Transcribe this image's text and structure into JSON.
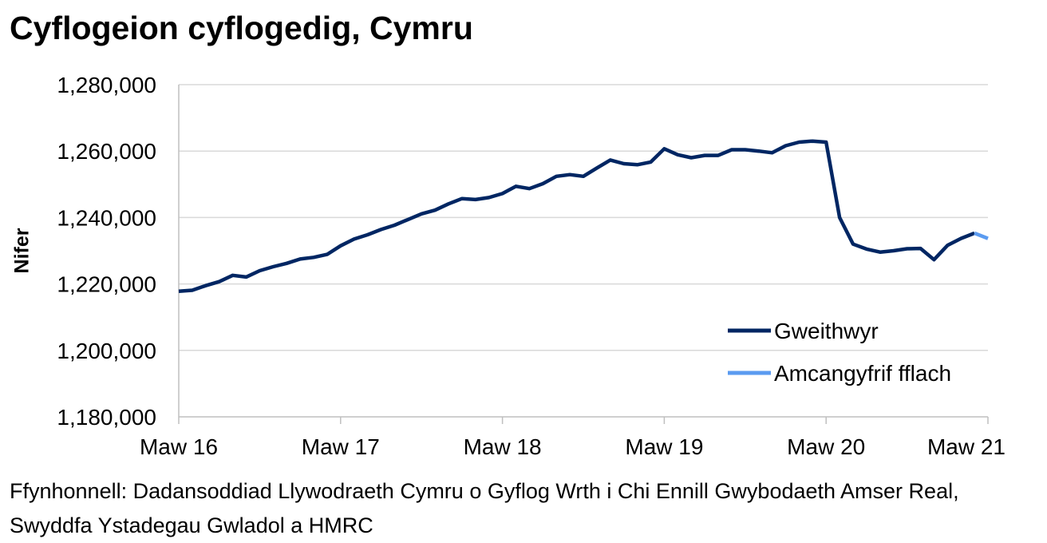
{
  "title": "Cyflogeion cyflogedig, Cymru",
  "ylabel": "Nifer",
  "source": "Ffynhonnell: Dadansoddiad Llywodraeth Cymru o Gyflog Wrth i Chi Ennill Gwybodaeth Amser Real, Swyddfa Ystadegau Gwladol a HMRC",
  "colors": {
    "workers": "#002663",
    "flash": "#5b9bf0",
    "grid": "#d9d9d9",
    "axis": "#bfbfbf"
  },
  "chart_data": {
    "type": "line",
    "title": "Cyflogeion cyflogedig, Cymru",
    "xlabel": "",
    "ylabel": "Nifer",
    "ylim": [
      1180000,
      1280000
    ],
    "yticks": [
      1180000,
      1200000,
      1220000,
      1240000,
      1260000,
      1280000
    ],
    "ytick_labels": [
      "1,180,000",
      "1,200,000",
      "1,220,000",
      "1,240,000",
      "1,260,000",
      "1,280,000"
    ],
    "xtick_labels": [
      "Maw 16",
      "Maw 17",
      "Maw 18",
      "Maw 19",
      "Maw 20",
      "Maw 21"
    ],
    "xtick_positions": [
      0,
      12,
      24,
      36,
      48,
      60
    ],
    "grid": true,
    "legend_position": "bottom-right",
    "series": [
      {
        "name": "Gweithwyr",
        "color": "#002663",
        "x": [
          0,
          1,
          2,
          3,
          4,
          5,
          6,
          7,
          8,
          9,
          10,
          11,
          12,
          13,
          14,
          15,
          16,
          17,
          18,
          19,
          20,
          21,
          22,
          23,
          24,
          25,
          26,
          27,
          28,
          29,
          30,
          31,
          32,
          33,
          34,
          35,
          36,
          37,
          38,
          39,
          40,
          41,
          42,
          43,
          44,
          45,
          46,
          47,
          48,
          49,
          50,
          51,
          52,
          53,
          54,
          55,
          56,
          57,
          58,
          59
        ],
        "values": [
          1217800,
          1218100,
          1219500,
          1220700,
          1222600,
          1222100,
          1224000,
          1225200,
          1226200,
          1227500,
          1228000,
          1228900,
          1231500,
          1233500,
          1234800,
          1236400,
          1237700,
          1239400,
          1241100,
          1242200,
          1244100,
          1245700,
          1245400,
          1246000,
          1247200,
          1249400,
          1248700,
          1250200,
          1252400,
          1252900,
          1252400,
          1254900,
          1257300,
          1256200,
          1255900,
          1256700,
          1260700,
          1258900,
          1258000,
          1258700,
          1258700,
          1260400,
          1260400,
          1260000,
          1259500,
          1261600,
          1262700,
          1263000,
          1262700,
          1240000,
          1232000,
          1230500,
          1229600,
          1230000,
          1230600,
          1230700,
          1227300,
          1231600,
          1233700,
          1235300
        ]
      },
      {
        "name": "Amcangyfrif fflach",
        "color": "#5b9bf0",
        "x": [
          59,
          60
        ],
        "values": [
          1235300,
          1233700
        ]
      }
    ]
  }
}
